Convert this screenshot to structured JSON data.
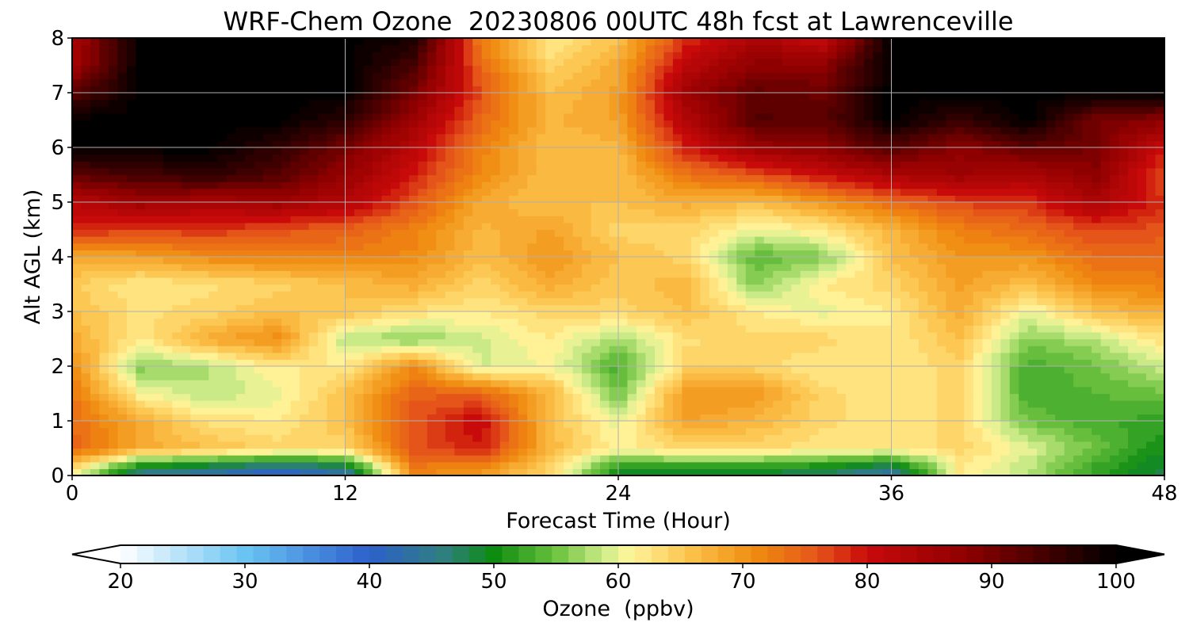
{
  "chart_data": {
    "type": "heatmap",
    "title": "WRF-Chem Ozone  20230806 00UTC 48h fcst at Lawrenceville",
    "xlabel": "Forecast Time (Hour)",
    "ylabel": "Alt AGL (km)",
    "x_ticks": [
      "0",
      "12",
      "24",
      "36",
      "48"
    ],
    "y_ticks": [
      "0",
      "1",
      "2",
      "3",
      "4",
      "5",
      "6",
      "7",
      "8"
    ],
    "xlim": [
      0,
      48
    ],
    "ylim": [
      0,
      8
    ],
    "grid": true,
    "x": [
      0,
      3,
      6,
      9,
      12,
      15,
      18,
      21,
      24,
      27,
      30,
      33,
      36,
      39,
      42,
      45,
      48
    ],
    "y": [
      0.1,
      0.5,
      1,
      1.5,
      2,
      2.5,
      3,
      3.5,
      4,
      4.5,
      5,
      5.5,
      6,
      6.5,
      7,
      7.5,
      8
    ],
    "z": [
      [
        62,
        46,
        44,
        41,
        44,
        72,
        70,
        64,
        50,
        49,
        49,
        48,
        44,
        62,
        58,
        52,
        48
      ],
      [
        75,
        68,
        66,
        64,
        64,
        76,
        79,
        67,
        61,
        64,
        64,
        62,
        62,
        64,
        60,
        55,
        50
      ],
      [
        74,
        68,
        63,
        62,
        66,
        76,
        81,
        66,
        60,
        69,
        67,
        64,
        62,
        64,
        55,
        53,
        52
      ],
      [
        73,
        61,
        58,
        60,
        66,
        75,
        75,
        67,
        55,
        70,
        70,
        64,
        62,
        64,
        53,
        54,
        55
      ],
      [
        71,
        56,
        58,
        62,
        62,
        71,
        59,
        61,
        53,
        64,
        64,
        62,
        62,
        64,
        53,
        55,
        59
      ],
      [
        68,
        62,
        68,
        71,
        58,
        56,
        59,
        62,
        57,
        63,
        64,
        64,
        62,
        66,
        56,
        58,
        63
      ],
      [
        66,
        63,
        64,
        66,
        66,
        63,
        62,
        64,
        64,
        66,
        62,
        60,
        62,
        68,
        60,
        66,
        68
      ],
      [
        65,
        62,
        63,
        64,
        66,
        68,
        64,
        68,
        65,
        67,
        56,
        62,
        64,
        69,
        66,
        71,
        72
      ],
      [
        68,
        69,
        71,
        72,
        72,
        71,
        66,
        70,
        66,
        64,
        54,
        56,
        66,
        70,
        70,
        74,
        74
      ],
      [
        79,
        77,
        78,
        76,
        75,
        72,
        67,
        69,
        64,
        64,
        60,
        62,
        67,
        72,
        74,
        77,
        76
      ],
      [
        82,
        86,
        84,
        86,
        83,
        76,
        68,
        66,
        66,
        68,
        66,
        70,
        74,
        77,
        78,
        84,
        78
      ],
      [
        92,
        94,
        96,
        93,
        87,
        79,
        71,
        66,
        66,
        73,
        76,
        80,
        84,
        86,
        84,
        88,
        76
      ],
      [
        100,
        100,
        100,
        96,
        90,
        82,
        72,
        66,
        67,
        79,
        86,
        88,
        93,
        88,
        92,
        90,
        80
      ],
      [
        100,
        100,
        100,
        100,
        96,
        86,
        74,
        67,
        69,
        83,
        93,
        92,
        100,
        95,
        100,
        90,
        88
      ],
      [
        92,
        100,
        100,
        100,
        100,
        90,
        76,
        66,
        69,
        86,
        92,
        91,
        100,
        100,
        100,
        100,
        100
      ],
      [
        85,
        100,
        100,
        100,
        100,
        94,
        74,
        64,
        68,
        82,
        88,
        88,
        100,
        100,
        100,
        100,
        100
      ],
      [
        84,
        100,
        100,
        100,
        100,
        98,
        72,
        62,
        66,
        78,
        84,
        80,
        100,
        100,
        100,
        100,
        100
      ]
    ],
    "colorbar": {
      "label": "Ozone  (ppbv)",
      "min": 20,
      "max": 100,
      "extend": "both",
      "ticks": [
        "20",
        "30",
        "40",
        "50",
        "60",
        "70",
        "80",
        "90",
        "100"
      ]
    },
    "colors": {
      "grid": "#b0b0b0",
      "colormap": [
        [
          20,
          "#ffffff"
        ],
        [
          30,
          "#6ac4f2"
        ],
        [
          40,
          "#2d5fcc"
        ],
        [
          46,
          "#2f7f7f"
        ],
        [
          50,
          "#0e8c12"
        ],
        [
          55,
          "#6cc23f"
        ],
        [
          59,
          "#d2ee8c"
        ],
        [
          61,
          "#fff59a"
        ],
        [
          66,
          "#fbc048"
        ],
        [
          71,
          "#f08c10"
        ],
        [
          76,
          "#e5551a"
        ],
        [
          80,
          "#c80a0a"
        ],
        [
          88,
          "#8e0000"
        ],
        [
          95,
          "#3a0000"
        ],
        [
          100,
          "#000000"
        ]
      ]
    }
  }
}
